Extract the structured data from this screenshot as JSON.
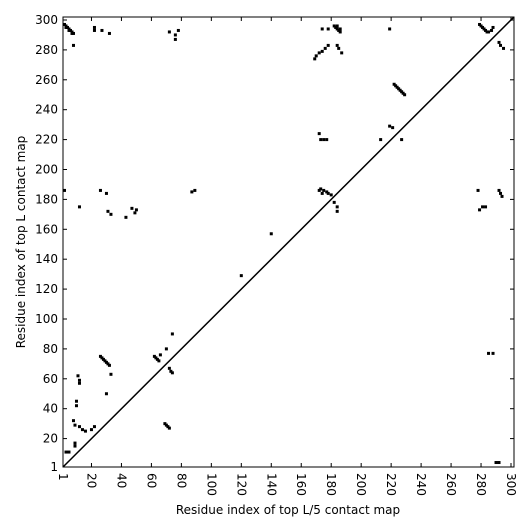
{
  "chart_data": {
    "type": "scatter",
    "xlabel": "Residue index of top L/5 contact map",
    "ylabel": "Residue index of top L contact map",
    "color": "#000000",
    "diagonal": true,
    "grid": false,
    "xlim": [
      1,
      302
    ],
    "ylim": [
      1,
      302
    ],
    "xticks": [
      1,
      20,
      40,
      60,
      80,
      100,
      120,
      140,
      160,
      180,
      200,
      220,
      240,
      260,
      280,
      300
    ],
    "yticks": [
      1,
      20,
      40,
      60,
      80,
      100,
      120,
      140,
      160,
      180,
      200,
      220,
      240,
      260,
      280,
      300
    ],
    "x": [
      2,
      3,
      4,
      5,
      6,
      7,
      8,
      3,
      5,
      7,
      22,
      22,
      27,
      32,
      72,
      76,
      76,
      78,
      169,
      170,
      172,
      174,
      176,
      178,
      174,
      178,
      182,
      183,
      184,
      185,
      186,
      184,
      186,
      184,
      185,
      187,
      219,
      222,
      223,
      224,
      225,
      226,
      227,
      228,
      229,
      219,
      221,
      279,
      280,
      281,
      282,
      283,
      284,
      285,
      287,
      288,
      292,
      293,
      295,
      2,
      8,
      12,
      26,
      30,
      31,
      33,
      43,
      47,
      49,
      50,
      87,
      89,
      140,
      120,
      172,
      173,
      175,
      177,
      172,
      173,
      175,
      177,
      178,
      180,
      174,
      182,
      184,
      184,
      213,
      227,
      278,
      279,
      281,
      283,
      292,
      293,
      294,
      3,
      5,
      8,
      9,
      10,
      10,
      11,
      12,
      12,
      9,
      9,
      12,
      14,
      16,
      20,
      22,
      26,
      27,
      28,
      29,
      30,
      31,
      32,
      30,
      33,
      62,
      63,
      64,
      65,
      66,
      70,
      72,
      73,
      74,
      69,
      70,
      71,
      72,
      74,
      285,
      288,
      290,
      292
    ],
    "y": [
      297,
      296,
      295,
      294,
      293,
      292,
      291,
      295,
      293,
      291,
      295,
      293,
      293,
      291,
      292,
      290,
      287,
      293,
      274,
      276,
      278,
      279,
      281,
      283,
      294,
      294,
      296,
      295,
      294,
      293,
      292,
      296,
      294,
      283,
      281,
      278,
      294,
      257,
      256,
      255,
      254,
      253,
      252,
      251,
      250,
      229,
      228,
      297,
      296,
      295,
      294,
      293,
      292,
      292,
      293,
      295,
      285,
      283,
      281,
      186,
      283,
      175,
      186,
      184,
      172,
      170,
      168,
      174,
      171,
      173,
      185,
      186,
      157,
      129,
      224,
      220,
      220,
      220,
      186,
      187,
      186,
      185,
      184,
      183,
      184,
      178,
      175,
      172,
      220,
      220,
      186,
      173,
      175,
      175,
      186,
      184,
      182,
      11,
      11,
      32,
      29,
      45,
      42,
      62,
      59,
      57,
      17,
      15,
      28,
      26,
      25,
      26,
      28,
      75,
      74,
      73,
      72,
      71,
      70,
      69,
      50,
      63,
      75,
      74,
      73,
      72,
      76,
      80,
      67,
      65,
      64,
      30,
      29,
      28,
      27,
      90,
      77,
      77,
      4,
      4
    ]
  }
}
